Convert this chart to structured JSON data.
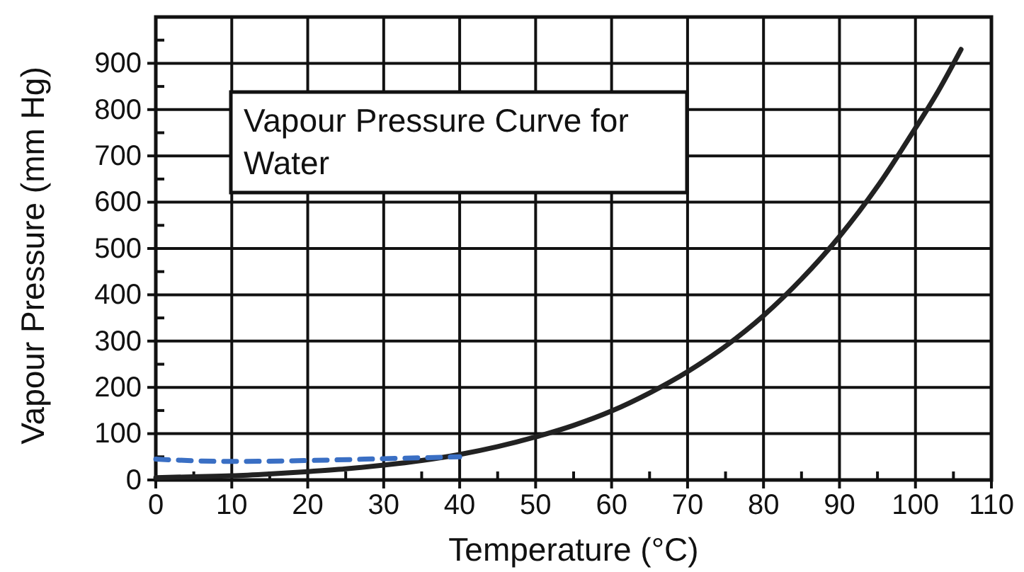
{
  "chart_data": {
    "type": "line",
    "title": "Vapour Pressure Curve for Water",
    "xlabel": "Temperature (°C)",
    "ylabel": "Vapour Pressure (mm Hg)",
    "xlim": [
      0,
      110
    ],
    "ylim": [
      0,
      1000
    ],
    "xticks": [
      0,
      {
        "value": 5,
        "label": null
      },
      10,
      {
        "value": 15,
        "label": null
      },
      20,
      {
        "value": 25,
        "label": null
      },
      30,
      {
        "value": 35,
        "label": null
      },
      40,
      {
        "value": 45,
        "label": null
      },
      50,
      {
        "value": 55,
        "label": null
      },
      60,
      {
        "value": 65,
        "label": null
      },
      70,
      {
        "value": 75,
        "label": null
      },
      80,
      {
        "value": 85,
        "label": null
      },
      90,
      {
        "value": 95,
        "label": null
      },
      100,
      {
        "value": 105,
        "label": null
      },
      110
    ],
    "yticks": [
      0,
      {
        "value": 50,
        "label": null
      },
      100,
      {
        "value": 150,
        "label": null
      },
      200,
      {
        "value": 250,
        "label": null
      },
      300,
      {
        "value": 350,
        "label": null
      },
      400,
      {
        "value": 450,
        "label": null
      },
      500,
      {
        "value": 550,
        "label": null
      },
      600,
      {
        "value": 650,
        "label": null
      },
      700,
      {
        "value": 750,
        "label": null
      },
      800,
      {
        "value": 850,
        "label": null
      },
      900,
      {
        "value": 950,
        "label": null
      }
    ],
    "grid": true,
    "marker": "none",
    "series": [
      {
        "color": "#222222",
        "line_style": "solid",
        "x": [
          0,
          5,
          10,
          15,
          20,
          25,
          30,
          35,
          40,
          45,
          50,
          55,
          60,
          65,
          70,
          75,
          80,
          85,
          90,
          95,
          100,
          103,
          106
        ],
        "values": [
          5,
          7,
          9,
          13,
          18,
          24,
          32,
          42,
          55,
          72,
          93,
          118,
          149,
          188,
          234,
          289,
          355,
          434,
          526,
          634,
          760,
          840,
          930
        ]
      },
      {
        "color": "#3a6fc4",
        "line_style": "dashed",
        "x": [
          0,
          10,
          20,
          30,
          40
        ],
        "values": [
          45,
          40,
          42,
          46,
          50
        ]
      }
    ]
  }
}
